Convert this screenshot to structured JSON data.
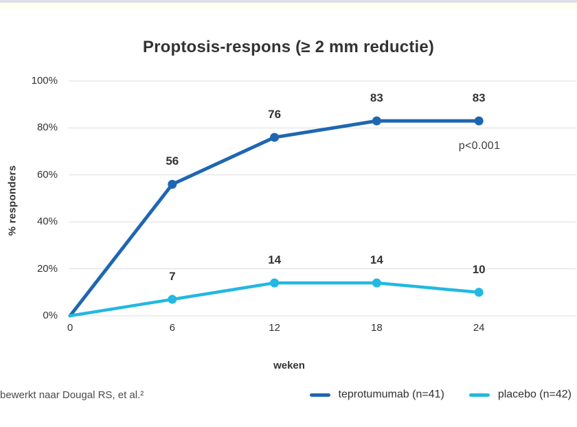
{
  "page": {
    "footnote": "bewerkt naar Dougal RS, et al.²"
  },
  "colors": {
    "teprotumumab_blue": "#1E66B2",
    "placebo_cyan": "#22B8E1",
    "text_dark": "#333333",
    "grid": "#DCDCDC",
    "top_strip": "#DEDEE6"
  },
  "chart_data": {
    "type": "line",
    "title": "Proptosis-respons (≥ 2 mm reductie)",
    "xlabel": "weken",
    "ylabel": "% responders",
    "x": [
      0,
      6,
      12,
      18,
      24
    ],
    "x_tick_labels": [
      "0",
      "6",
      "12",
      "18",
      "24"
    ],
    "y_ticks": [
      0,
      20,
      40,
      60,
      80,
      100
    ],
    "y_tick_labels": [
      "0%",
      "20%",
      "40%",
      "60%",
      "80%",
      "100%"
    ],
    "ylim": [
      0,
      100
    ],
    "grid": "horizontal-only",
    "annotation": "p<0.001",
    "legend_position": "bottom-right",
    "series": [
      {
        "name": "teprotumumab (n=41)",
        "color": "#1E66B2",
        "values": [
          0,
          56,
          76,
          83,
          83
        ],
        "point_labels": [
          "",
          "56",
          "76",
          "83",
          "83"
        ]
      },
      {
        "name": "placebo (n=42)",
        "color": "#22B8E1",
        "values": [
          0,
          7,
          14,
          14,
          10
        ],
        "point_labels": [
          "",
          "7",
          "14",
          "14",
          "10"
        ]
      }
    ]
  }
}
